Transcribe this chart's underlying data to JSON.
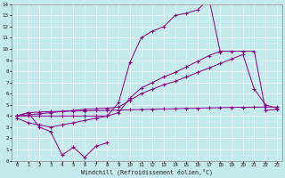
{
  "bg_color": "#c5eaed",
  "line_color": "#880088",
  "xlabel": "Windchill (Refroidissement éolien,°C)",
  "xlim": [
    -0.5,
    23.5
  ],
  "ylim": [
    0,
    14
  ],
  "xticks": [
    0,
    1,
    2,
    3,
    4,
    5,
    6,
    7,
    8,
    9,
    10,
    11,
    12,
    13,
    14,
    15,
    16,
    17,
    18,
    19,
    20,
    21,
    22,
    23
  ],
  "yticks": [
    0,
    1,
    2,
    3,
    4,
    5,
    6,
    7,
    8,
    9,
    10,
    11,
    12,
    13,
    14
  ],
  "lines": [
    {
      "x": [
        0,
        1,
        2,
        3,
        4,
        5,
        6,
        7,
        8
      ],
      "y": [
        4.0,
        4.3,
        3.0,
        2.6,
        0.5,
        1.2,
        0.3,
        1.3,
        1.6
      ]
    },
    {
      "x": [
        0,
        1,
        2,
        3,
        4,
        5,
        6,
        7,
        8,
        9,
        10,
        11,
        12,
        13,
        14,
        15,
        16,
        17,
        18,
        19,
        20,
        21,
        22,
        23
      ],
      "y": [
        4.0,
        4.3,
        4.35,
        4.4,
        4.42,
        4.44,
        4.46,
        4.48,
        4.5,
        4.52,
        4.55,
        4.58,
        4.6,
        4.63,
        4.65,
        4.68,
        4.7,
        4.73,
        4.75,
        4.77,
        4.78,
        4.79,
        4.8,
        4.8
      ]
    },
    {
      "x": [
        0,
        1,
        2,
        3,
        4,
        5,
        6,
        7,
        8,
        9,
        10,
        11,
        12,
        13,
        14,
        15,
        16,
        17,
        18,
        19,
        20,
        21,
        22,
        23
      ],
      "y": [
        4.0,
        4.1,
        4.2,
        4.3,
        4.4,
        4.5,
        4.6,
        4.65,
        4.7,
        4.8,
        5.4,
        6.0,
        6.4,
        6.8,
        7.1,
        7.5,
        7.9,
        8.3,
        8.7,
        9.1,
        9.5,
        6.4,
        5.0,
        4.7
      ]
    },
    {
      "x": [
        0,
        1,
        2,
        3,
        4,
        5,
        6,
        7,
        8,
        9,
        10,
        11,
        12,
        13,
        14,
        15,
        16,
        17,
        18,
        19,
        20,
        21,
        22,
        23
      ],
      "y": [
        3.8,
        3.4,
        3.2,
        3.0,
        3.2,
        3.4,
        3.6,
        3.8,
        4.0,
        4.3,
        5.6,
        6.5,
        7.0,
        7.5,
        7.9,
        8.4,
        8.9,
        9.4,
        9.8,
        9.8,
        9.8,
        9.8,
        4.5,
        4.6
      ]
    },
    {
      "x": [
        0,
        1,
        2,
        3,
        4,
        5,
        6,
        7,
        8,
        9,
        10,
        11,
        12,
        13,
        14,
        15,
        16,
        17,
        18
      ],
      "y": [
        4.0,
        4.0,
        4.0,
        4.0,
        4.0,
        4.0,
        4.0,
        4.0,
        4.0,
        5.2,
        8.8,
        11.0,
        11.6,
        12.0,
        13.0,
        13.2,
        13.5,
        14.5,
        9.7
      ]
    }
  ]
}
